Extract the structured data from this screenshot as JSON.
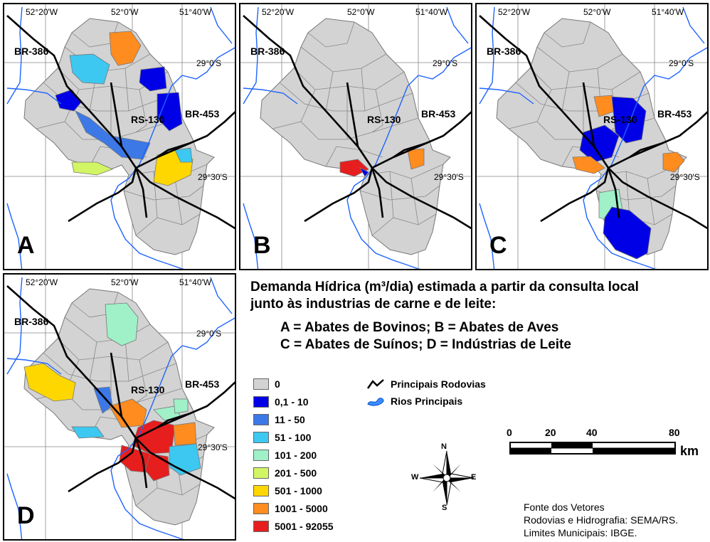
{
  "panels": [
    {
      "letter": "A",
      "coords": {
        "lon1": "52°20'W",
        "lon2": "52°0'W",
        "lon3": "51°40'W",
        "lat1": "29°0'S",
        "lat2": "29°30'S"
      },
      "roads": {
        "br386": "BR-386",
        "rs130": "RS-130",
        "br453": "BR-453"
      }
    },
    {
      "letter": "B",
      "coords": {
        "lon1": "52°20'W",
        "lon2": "52°0'W",
        "lon3": "51°40'W",
        "lat1": "29°0'S",
        "lat2": "29°30'S"
      },
      "roads": {
        "br386": "BR-386",
        "rs130": "RS-130",
        "br453": "BR-453"
      }
    },
    {
      "letter": "C",
      "coords": {
        "lon1": "52°20'W",
        "lon2": "52°0'W",
        "lon3": "51°40'W",
        "lat1": "29°0'S",
        "lat2": "29°30'S"
      },
      "roads": {
        "br386": "BR-386",
        "rs130": "RS-130",
        "br453": "BR-453"
      }
    },
    {
      "letter": "D",
      "coords": {
        "lon1": "52°20'W",
        "lon2": "52°0'W",
        "lon3": "51°40'W",
        "lat1": "29°0'S",
        "lat2": "29°30'S"
      },
      "roads": {
        "br386": "BR-386",
        "rs130": "RS-130",
        "br453": "BR-453"
      }
    }
  ],
  "title": {
    "line1": "Demanda Hídrica (m³/dia) estimada a partir da consulta local",
    "line2": "junto às industrias de carne e de leite:",
    "sub1": "A = Abates de Bovinos; B = Abates de Aves",
    "sub2": "C = Abates de Suínos; D = Indústrias de Leite"
  },
  "legend": [
    {
      "label": "0",
      "color": "#d3d3d3"
    },
    {
      "label": "0,1 - 10",
      "color": "#0000e6"
    },
    {
      "label": "11 - 50",
      "color": "#3c78e6"
    },
    {
      "label": "51 - 100",
      "color": "#3cc8f0"
    },
    {
      "label": "101 - 200",
      "color": "#a0f0c8"
    },
    {
      "label": "201 - 500",
      "color": "#d2f564"
    },
    {
      "label": "501 - 1000",
      "color": "#ffd700"
    },
    {
      "label": "1001 - 5000",
      "color": "#ff8c1e"
    },
    {
      "label": "5001 - 92055",
      "color": "#e61e1e"
    }
  ],
  "legend_lines": {
    "roads": "Principais Rodovias",
    "rivers": "Rios Principais"
  },
  "scale": {
    "t0": "0",
    "t20": "20",
    "t40": "40",
    "t80": "80",
    "unit": "km"
  },
  "compass": {
    "n": "N",
    "s": "S",
    "e": "E",
    "w": "W"
  },
  "source": {
    "l1": "Fonte dos Vetores",
    "l2": "Rodovias e Hidrografia: SEMA/RS.",
    "l3": "Limites Municipais: IBGE."
  }
}
